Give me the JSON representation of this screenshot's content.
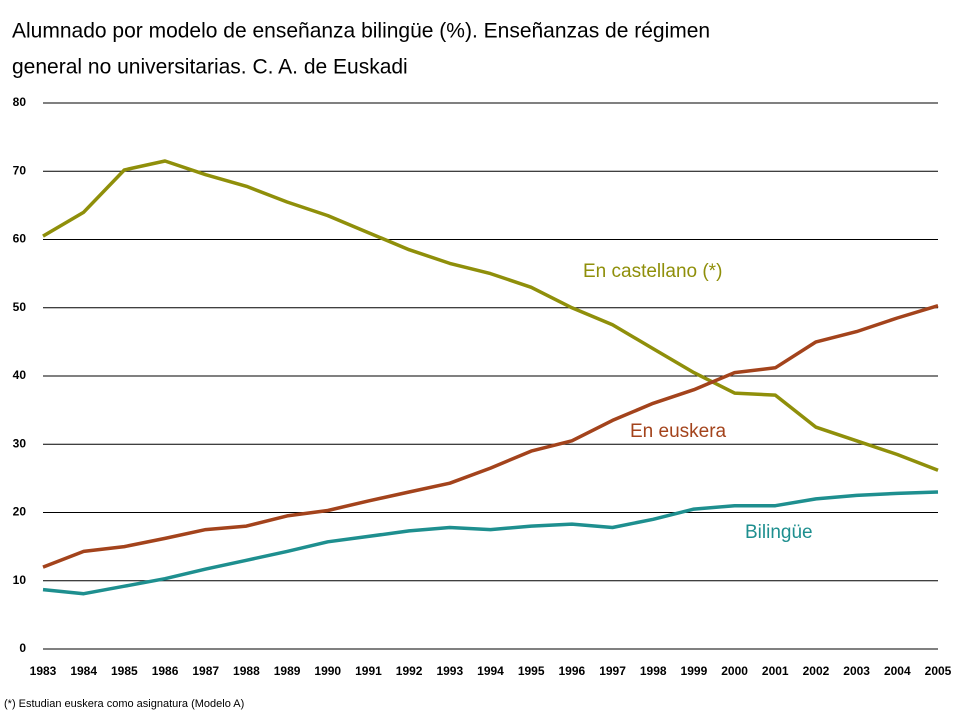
{
  "chart_data": {
    "type": "line",
    "title": [
      "Alumnado por modelo de enseñanza bilingüe (%). Enseñanzas de régimen",
      "general no universitarias. C. A. de Euskadi"
    ],
    "note": "(*) Estudian euskera como asignatura (Modelo A)",
    "categories": [
      "1983",
      "1984",
      "1985",
      "1986",
      "1987",
      "1988",
      "1989",
      "1990",
      "1991",
      "1992",
      "1993",
      "1994",
      "1995",
      "1996",
      "1997",
      "1998",
      "1999",
      "2000",
      "2001",
      "2002",
      "2003",
      "2004",
      "2005"
    ],
    "series": [
      {
        "name": "En castellano (*)",
        "color": "#8f8f0a",
        "values": [
          60.5,
          64,
          70.2,
          71.5,
          69.5,
          67.8,
          65.5,
          63.5,
          61,
          58.5,
          56.5,
          55,
          53,
          50,
          47.5,
          44,
          40.5,
          37.5,
          37.2,
          32.5,
          30.5,
          28.5,
          26.2
        ]
      },
      {
        "name": "En euskera",
        "color": "#a3431c",
        "values": [
          12,
          14.3,
          15,
          16.2,
          17.5,
          18,
          19.5,
          20.3,
          21.7,
          23,
          24.3,
          26.5,
          29,
          30.5,
          33.5,
          36,
          38,
          40.5,
          41.2,
          45,
          46.5,
          48.5,
          50.3
        ]
      },
      {
        "name": "Bilingüe",
        "color": "#1e8f8f",
        "values": [
          8.7,
          8.1,
          9.2,
          10.3,
          11.7,
          13,
          14.3,
          15.7,
          16.5,
          17.3,
          17.8,
          17.5,
          18,
          18.3,
          17.8,
          19,
          20.5,
          21,
          21,
          22,
          22.5,
          22.8,
          23
        ]
      }
    ],
    "ylim": [
      0,
      80
    ],
    "yticks": [
      0,
      10,
      20,
      30,
      40,
      50,
      60,
      70,
      80
    ],
    "grid": true
  }
}
